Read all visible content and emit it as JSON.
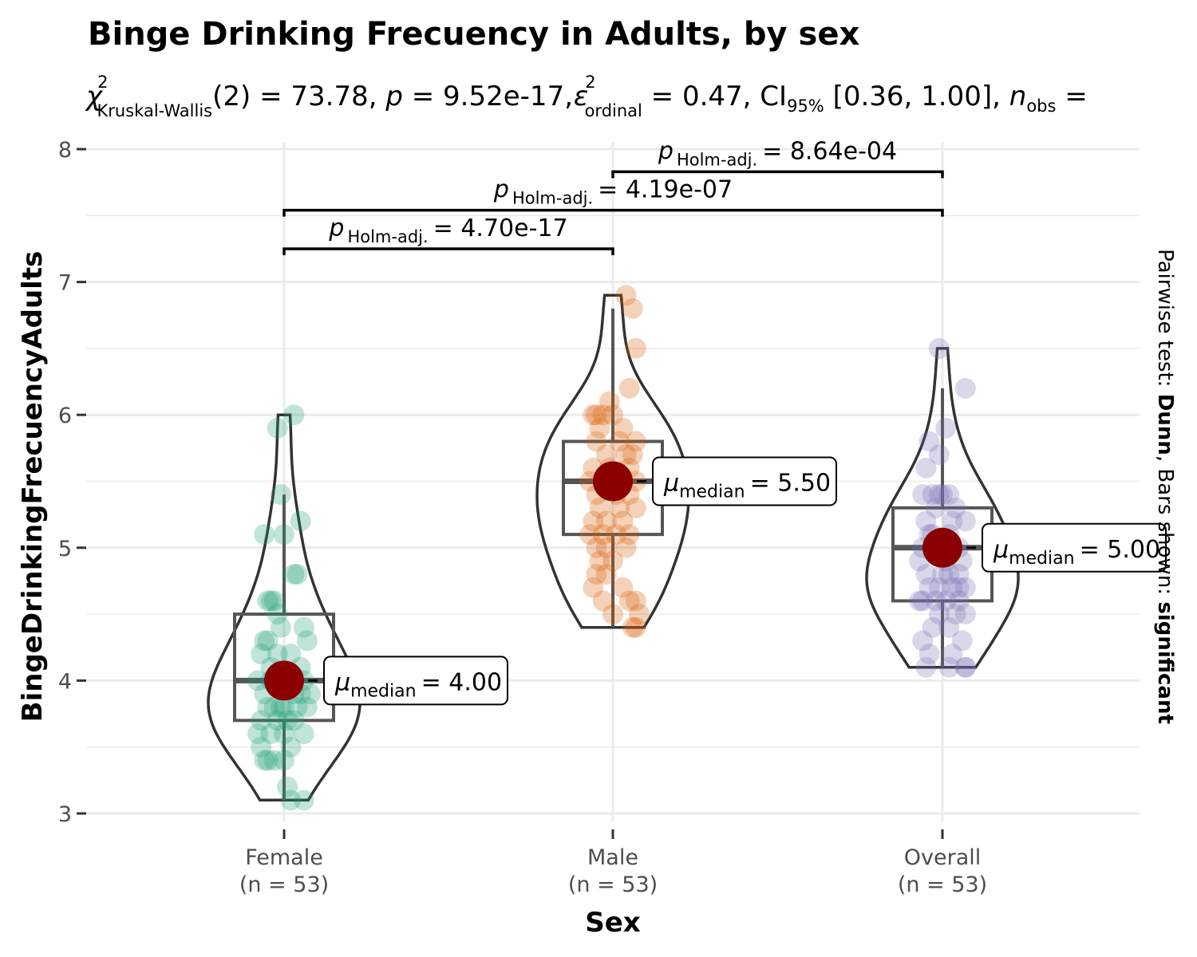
{
  "chart_data": {
    "type": "violin",
    "title": "Binge Drinking Frecuency in Adults, by sex",
    "subtitle": {
      "stat_symbol": "χ",
      "stat_sup": "2",
      "stat_sub": "Kruskal-Wallis",
      "stat_rest": "(2) = 73.78, ",
      "p_label": "p",
      "p_rest": " = 9.52e-17, ",
      "eff_symbol": "ε",
      "eff_sup": "2",
      "eff_sub": "ordinal",
      "eff_rest": " = 0.47, CI",
      "ci_sub": "95%",
      "ci_rest": " [0.36, 1.00], ",
      "n_label": "n",
      "n_sub": "obs",
      "n_rest": " = "
    },
    "xlabel": "Sex",
    "ylabel": "BingeDrinkingFrecuencyAdults",
    "ylim": [
      3,
      8
    ],
    "yticks": [
      3,
      4,
      5,
      6,
      7,
      8
    ],
    "caption_side": {
      "prefix": "Pairwise test: ",
      "test": "Dunn",
      "middle": ", Bars shown: ",
      "shown": "significant"
    },
    "groups": [
      {
        "category": "Female",
        "n_label": "(n = 53)",
        "color": "#1B9E77",
        "median": 4.0,
        "q1": 3.7,
        "q3": 4.5,
        "whisker_low": 3.1,
        "whisker_high": 5.4,
        "ymin": 3.1,
        "ymax": 6.0,
        "median_label": "= 4.00",
        "points": [
          6.0,
          5.9,
          5.4,
          5.2,
          5.1,
          5.1,
          4.8,
          4.8,
          4.6,
          4.6,
          4.6,
          4.5,
          4.4,
          4.4,
          4.3,
          4.3,
          4.3,
          4.2,
          4.2,
          4.1,
          4.1,
          4.0,
          4.0,
          4.0,
          3.9,
          3.9,
          3.9,
          3.8,
          3.8,
          3.8,
          3.8,
          3.8,
          3.7,
          3.7,
          3.7,
          3.7,
          3.6,
          3.6,
          3.6,
          3.6,
          3.5,
          3.5,
          3.4,
          3.4,
          3.4,
          3.4,
          3.2,
          3.1,
          3.1,
          4.2,
          3.9,
          3.8,
          4.0
        ],
        "jitter": [
          0.03,
          -0.02,
          -0.01,
          0.05,
          -0.06,
          0.0,
          0.04,
          0.03,
          -0.04,
          -0.05,
          -0.03,
          -0.02,
          0.06,
          -0.01,
          0.07,
          -0.06,
          -0.05,
          0.02,
          -0.07,
          -0.04,
          0.05,
          -0.08,
          0.01,
          0.06,
          -0.06,
          0.03,
          0.08,
          0.04,
          -0.03,
          0.0,
          -0.05,
          0.07,
          -0.02,
          -0.07,
          0.03,
          0.01,
          -0.08,
          -0.04,
          0.0,
          0.06,
          -0.07,
          0.02,
          -0.05,
          -0.06,
          0.0,
          -0.03,
          0.01,
          0.02,
          0.06,
          -0.02,
          0.05,
          -0.01,
          -0.04
        ]
      },
      {
        "category": "Male",
        "n_label": "(n = 53)",
        "color": "#D95F02",
        "median": 5.5,
        "q1": 5.1,
        "q3": 5.8,
        "whisker_low": 4.4,
        "whisker_high": 6.8,
        "ymin": 4.4,
        "ymax": 6.9,
        "median_label": "= 5.50",
        "points": [
          6.9,
          6.8,
          6.5,
          6.2,
          6.1,
          6.0,
          6.0,
          6.0,
          6.0,
          5.9,
          5.9,
          5.8,
          5.8,
          5.8,
          5.7,
          5.7,
          5.7,
          5.6,
          5.6,
          5.6,
          5.5,
          5.5,
          5.5,
          5.5,
          5.4,
          5.4,
          5.4,
          5.3,
          5.3,
          5.3,
          5.2,
          5.2,
          5.2,
          5.1,
          5.1,
          5.1,
          5.1,
          5.0,
          5.0,
          5.0,
          4.9,
          4.9,
          4.8,
          4.8,
          4.7,
          4.7,
          4.6,
          4.6,
          4.6,
          4.5,
          4.5,
          4.4,
          4.4
        ],
        "jitter": [
          0.04,
          0.06,
          0.07,
          0.05,
          -0.01,
          -0.05,
          -0.03,
          0.0,
          -0.06,
          0.03,
          -0.04,
          0.07,
          -0.05,
          0.02,
          0.06,
          -0.02,
          0.04,
          -0.06,
          0.05,
          -0.01,
          -0.07,
          0.03,
          0.07,
          -0.03,
          -0.05,
          0.05,
          0.01,
          -0.04,
          0.07,
          0.02,
          -0.06,
          0.03,
          -0.02,
          -0.07,
          0.05,
          -0.03,
          0.01,
          -0.05,
          0.04,
          -0.02,
          -0.04,
          0.0,
          -0.05,
          -0.02,
          -0.06,
          0.03,
          0.05,
          0.07,
          -0.03,
          0.08,
          0.0,
          0.06,
          0.07
        ]
      },
      {
        "category": "Overall",
        "n_label": "(n = 53)",
        "color": "#7570B3",
        "median": 5.0,
        "q1": 4.6,
        "q3": 5.3,
        "whisker_low": 4.1,
        "whisker_high": 6.2,
        "ymin": 4.1,
        "ymax": 6.5,
        "median_label": "= 5.00",
        "points": [
          6.5,
          6.2,
          5.9,
          5.8,
          5.7,
          5.6,
          5.4,
          5.4,
          5.4,
          5.4,
          5.4,
          5.3,
          5.2,
          5.2,
          5.1,
          5.1,
          5.0,
          5.0,
          5.0,
          5.0,
          4.9,
          4.9,
          4.8,
          4.8,
          4.8,
          4.7,
          4.7,
          4.7,
          4.7,
          4.6,
          4.6,
          4.6,
          4.6,
          4.5,
          4.5,
          4.5,
          4.4,
          4.4,
          4.3,
          4.3,
          4.2,
          4.2,
          4.1,
          4.1,
          4.1,
          4.1,
          4.9,
          5.1,
          4.8,
          5.2,
          4.6,
          4.7,
          5.3
        ],
        "jitter": [
          -0.01,
          0.07,
          0.01,
          -0.04,
          -0.01,
          -0.05,
          -0.06,
          -0.03,
          0.0,
          0.02,
          -0.01,
          0.04,
          -0.05,
          0.07,
          -0.04,
          0.02,
          -0.06,
          0.05,
          -0.02,
          0.03,
          -0.07,
          0.06,
          -0.05,
          0.02,
          0.0,
          -0.04,
          -0.01,
          0.03,
          0.07,
          -0.06,
          -0.02,
          0.01,
          0.05,
          -0.01,
          0.04,
          0.07,
          -0.03,
          0.02,
          -0.06,
          0.06,
          -0.04,
          0.03,
          -0.05,
          0.02,
          0.07,
          0.07,
          0.01,
          -0.03,
          0.05,
          0.03,
          -0.07,
          0.05,
          -0.02
        ]
      }
    ],
    "comparisons": [
      {
        "from": "Female",
        "to": "Male",
        "bar_y": 7.25,
        "p_label": "p",
        "p_sub": "Holm-adj.",
        "p_value": "= 4.70e-17"
      },
      {
        "from": "Female",
        "to": "Overall",
        "bar_y": 7.54,
        "p_label": "p",
        "p_sub": "Holm-adj.",
        "p_value": "= 4.19e-07"
      },
      {
        "from": "Male",
        "to": "Overall",
        "bar_y": 7.83,
        "p_label": "p",
        "p_sub": "Holm-adj.",
        "p_value": "= 8.64e-04"
      }
    ],
    "median_symbol": "μ",
    "median_sub": "median",
    "median_point_color": "#8B0000",
    "grid": true,
    "legend": "none"
  }
}
